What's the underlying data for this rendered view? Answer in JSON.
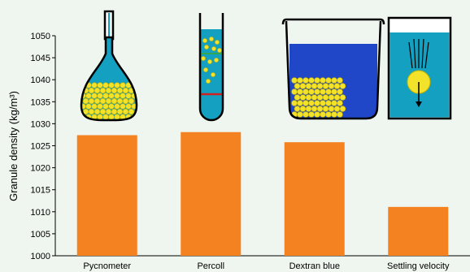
{
  "chart_data": {
    "type": "bar",
    "categories": [
      "Pycnometer",
      "Percoll",
      "Dextran blue",
      "Settling velocity"
    ],
    "values": [
      1027.4,
      1028.1,
      1025.8,
      1011.1
    ],
    "ylabel": "Granule density (kg/m³)",
    "ylim": [
      1000,
      1050
    ],
    "yticks": [
      1000,
      1005,
      1010,
      1015,
      1020,
      1025,
      1030,
      1035,
      1040,
      1045,
      1050
    ],
    "bar_color": "#f58220",
    "grid": false,
    "legend": "none"
  },
  "illustration_icons": [
    "pycnometer-flask-icon",
    "percoll-tube-icon",
    "dextran-beaker-icon",
    "settling-column-icon"
  ],
  "colors": {
    "water": "#14a0c0",
    "dextran": "#1f47c7",
    "granule": "#f2e22a",
    "granule_stroke": "#c8b400",
    "percoll_line_green": "#2fa84f",
    "percoll_line_red": "#d02020",
    "background": "#eef6ef"
  }
}
